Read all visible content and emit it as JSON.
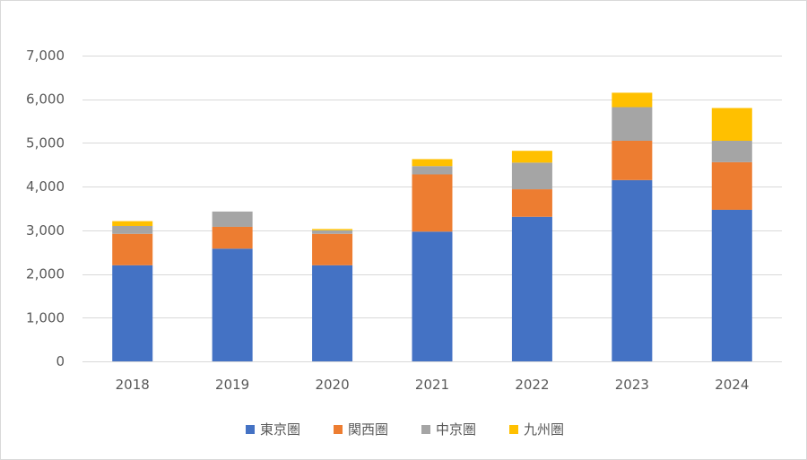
{
  "chart_data": {
    "type": "bar",
    "stacked": true,
    "title": "",
    "xlabel": "",
    "ylabel": "",
    "ylim": [
      0,
      7000
    ],
    "yticks": [
      0,
      1000,
      2000,
      3000,
      4000,
      5000,
      6000,
      7000
    ],
    "ytick_labels": [
      "0",
      "1,000",
      "2,000",
      "3,000",
      "4,000",
      "5,000",
      "6,000",
      "7,000"
    ],
    "categories": [
      "2018",
      "2019",
      "2020",
      "2021",
      "2022",
      "2023",
      "2024"
    ],
    "grid": true,
    "legend_position": "bottom",
    "series": [
      {
        "name": "東京圏",
        "color": "#4472C4",
        "values": [
          2200,
          2580,
          2200,
          2970,
          3310,
          4150,
          3470
        ]
      },
      {
        "name": "関西圏",
        "color": "#ED7D31",
        "values": [
          720,
          500,
          720,
          1310,
          630,
          900,
          1090
        ]
      },
      {
        "name": "中京圏",
        "color": "#A5A5A5",
        "values": [
          180,
          350,
          80,
          190,
          610,
          770,
          490
        ]
      },
      {
        "name": "九州圏",
        "color": "#FFC000",
        "values": [
          110,
          0,
          30,
          160,
          270,
          330,
          750
        ]
      }
    ]
  }
}
